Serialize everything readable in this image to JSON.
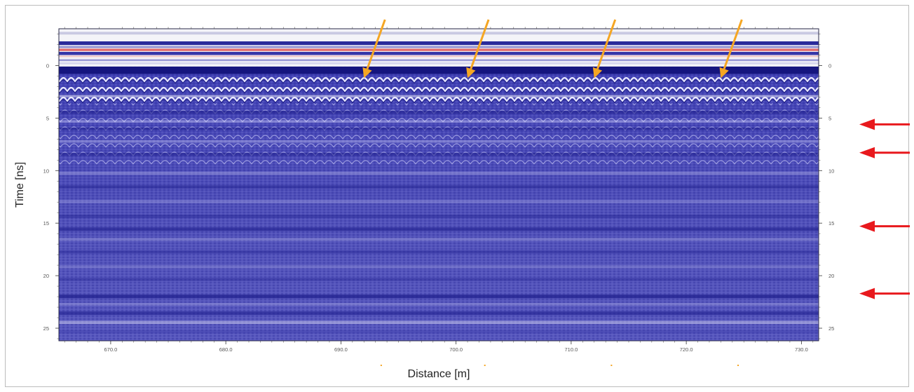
{
  "chart_data": {
    "type": "heatmap",
    "title": "",
    "xlabel": "Distance [m]",
    "ylabel": "Time [ns]",
    "xlim": [
      665.5,
      731.5
    ],
    "ylim": [
      -3.5,
      26.2
    ],
    "y_inverted": true,
    "x_ticks": [
      670,
      680,
      690,
      700,
      710,
      720,
      730
    ],
    "x_tick_labels": [
      "670.0",
      "680.0",
      "690.0",
      "700.0",
      "710.0",
      "720.0",
      "730.0"
    ],
    "y_ticks": [
      0,
      5,
      10,
      15,
      20,
      25
    ],
    "y_tick_labels": [
      "0",
      "5",
      "10",
      "15",
      "20",
      "25"
    ],
    "colormap": [
      "#ffffff",
      "#3a3ab0",
      "#1c1c8a"
    ],
    "direct_wave_line_color": "#e06a6a",
    "annotations": {
      "orange_arrows": {
        "color": "#f5a623",
        "x_tips": [
          692,
          701,
          712,
          723
        ],
        "y_tip": 1.2
      },
      "red_arrows": {
        "color": "#e8191d",
        "y_levels": [
          5.6,
          8.3,
          15.3,
          21.7
        ]
      }
    }
  }
}
